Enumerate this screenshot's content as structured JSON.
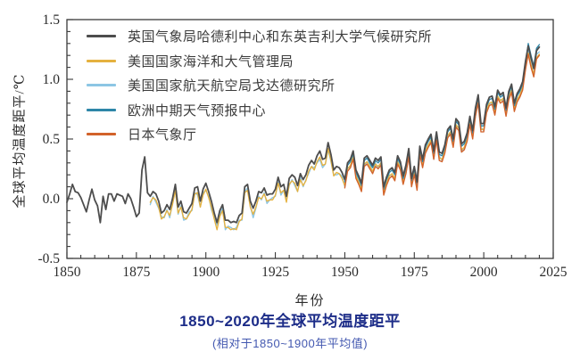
{
  "chart_data": {
    "type": "line",
    "title": "1850~2020年全球平均温度距平",
    "subtitle": "(相对于1850~1900年平均值)",
    "xlabel": "年份",
    "ylabel": "全球平均温度距平/℃",
    "x_range": [
      1850,
      2025
    ],
    "y_range": [
      -0.5,
      1.5
    ],
    "xticks": [
      1850,
      1875,
      1900,
      1925,
      1950,
      1975,
      2000,
      2025
    ],
    "yticks": [
      1.5,
      1.0,
      0.5,
      0.0,
      -0.5
    ],
    "x_minor_step": 5,
    "y_minor_step": 0.1,
    "grid": false,
    "legend_position": "top-left",
    "axis_color": "#3a3a3a",
    "title_color": "#1c2c88",
    "subtitle_color": "#4358b0",
    "series": [
      {
        "name": "英国气象局哈德利中心和东英吉利大学气候研究所",
        "color": "#4d4d4d",
        "start_year": 1850,
        "values": [
          -0.03,
          0.04,
          0.12,
          0.06,
          0.05,
          0.01,
          -0.05,
          -0.11,
          -0.01,
          0.08,
          -0.01,
          -0.06,
          -0.2,
          0.02,
          -0.09,
          0.04,
          0.04,
          -0.02,
          0.04,
          0.03,
          0.02,
          -0.04,
          0.04,
          0.0,
          -0.07,
          -0.15,
          -0.12,
          0.24,
          0.35,
          0.05,
          0.02,
          0.06,
          0.04,
          -0.02,
          -0.12,
          -0.1,
          -0.05,
          -0.09,
          0.0,
          0.12,
          -0.07,
          -0.02,
          -0.11,
          -0.12,
          -0.08,
          -0.04,
          0.09,
          0.1,
          -0.02,
          0.08,
          0.13,
          0.06,
          -0.02,
          -0.12,
          -0.2,
          -0.1,
          -0.05,
          -0.18,
          -0.18,
          -0.2,
          -0.19,
          -0.2,
          -0.14,
          -0.12,
          0.1,
          0.12,
          -0.02,
          -0.08,
          -0.02,
          0.06,
          0.05,
          0.09,
          0.03,
          0.04,
          0.04,
          0.08,
          0.18,
          0.1,
          0.12,
          0.02,
          0.17,
          0.2,
          0.18,
          0.11,
          0.21,
          0.16,
          0.2,
          0.28,
          0.32,
          0.29,
          0.36,
          0.4,
          0.33,
          0.34,
          0.47,
          0.37,
          0.24,
          0.27,
          0.26,
          0.22,
          0.16,
          0.3,
          0.33,
          0.4,
          0.24,
          0.19,
          0.13,
          0.34,
          0.36,
          0.32,
          0.28,
          0.34,
          0.32,
          0.35,
          0.1,
          0.18,
          0.24,
          0.26,
          0.22,
          0.36,
          0.31,
          0.19,
          0.28,
          0.42,
          0.17,
          0.27,
          0.14,
          0.44,
          0.33,
          0.45,
          0.5,
          0.54,
          0.4,
          0.56,
          0.39,
          0.38,
          0.45,
          0.58,
          0.61,
          0.5,
          0.67,
          0.64,
          0.46,
          0.48,
          0.55,
          0.69,
          0.57,
          0.76,
          0.87,
          0.63,
          0.63,
          0.79,
          0.85,
          0.86,
          0.77,
          0.91,
          0.87,
          0.89,
          0.76,
          0.9,
          0.96,
          0.8,
          0.88,
          0.92,
          0.98,
          1.15,
          1.28,
          1.18,
          1.09,
          1.24,
          1.27
        ]
      },
      {
        "name": "美国国家海洋和大气管理局",
        "color": "#e5b13f",
        "start_year": 1880,
        "values": [
          -0.03,
          0.01,
          -0.01,
          -0.07,
          -0.17,
          -0.15,
          -0.1,
          -0.14,
          -0.05,
          0.07,
          -0.12,
          -0.07,
          -0.16,
          -0.17,
          -0.13,
          -0.09,
          0.04,
          0.05,
          -0.07,
          0.03,
          0.08,
          0.01,
          -0.07,
          -0.17,
          -0.26,
          -0.15,
          -0.1,
          -0.24,
          -0.24,
          -0.26,
          -0.25,
          -0.26,
          -0.19,
          -0.17,
          0.05,
          0.07,
          -0.07,
          -0.13,
          -0.07,
          0.01,
          0.0,
          0.04,
          -0.02,
          -0.01,
          -0.01,
          0.03,
          0.13,
          0.05,
          0.07,
          -0.03,
          0.12,
          0.15,
          0.13,
          0.06,
          0.16,
          0.11,
          0.15,
          0.23,
          0.27,
          0.24,
          0.31,
          0.35,
          0.28,
          0.29,
          0.42,
          0.32,
          0.19,
          0.22,
          0.21,
          0.17,
          0.11,
          0.25,
          0.28,
          0.35,
          0.19,
          0.14,
          0.08,
          0.29,
          0.31,
          0.27,
          0.23,
          0.29,
          0.27,
          0.3,
          0.05,
          0.13,
          0.19,
          0.21,
          0.17,
          0.31,
          0.26,
          0.14,
          0.23,
          0.37,
          0.12,
          0.22,
          0.09,
          0.39,
          0.28,
          0.4,
          0.45,
          0.49,
          0.35,
          0.51,
          0.34,
          0.33,
          0.4,
          0.53,
          0.56,
          0.45,
          0.62,
          0.59,
          0.41,
          0.43,
          0.5,
          0.64,
          0.52,
          0.71,
          0.82,
          0.58,
          0.58,
          0.74,
          0.8,
          0.81,
          0.72,
          0.86,
          0.82,
          0.84,
          0.71,
          0.85,
          0.91,
          0.75,
          0.83,
          0.87,
          0.93,
          1.1,
          1.22,
          1.12,
          1.04,
          1.18,
          1.21
        ]
      },
      {
        "name": "美国国家航天航空局戈达德研究所",
        "color": "#8cc6e4",
        "start_year": 1880,
        "values": [
          -0.05,
          0.02,
          -0.03,
          -0.08,
          -0.15,
          -0.16,
          -0.09,
          -0.16,
          -0.04,
          0.08,
          -0.13,
          -0.06,
          -0.18,
          -0.17,
          -0.11,
          -0.1,
          0.05,
          0.03,
          -0.07,
          0.05,
          0.07,
          0.02,
          -0.09,
          -0.16,
          -0.22,
          -0.13,
          -0.08,
          -0.26,
          -0.23,
          -0.24,
          -0.26,
          -0.24,
          -0.18,
          -0.18,
          0.06,
          0.09,
          -0.06,
          -0.16,
          -0.08,
          0.02,
          -0.01,
          0.05,
          -0.04,
          -0.01,
          0.01,
          0.02,
          0.14,
          0.03,
          0.07,
          -0.01,
          0.11,
          0.16,
          0.11,
          0.06,
          0.18,
          0.1,
          0.16,
          0.21,
          0.27,
          0.26,
          0.3,
          0.33,
          0.26,
          0.29,
          0.41,
          0.31,
          0.2,
          0.2,
          0.21,
          0.19,
          0.1,
          0.26,
          0.26,
          0.35,
          0.21,
          0.13,
          0.09,
          0.27,
          0.31,
          0.29,
          0.22,
          0.3,
          0.25,
          0.3,
          0.07,
          0.12,
          0.2,
          0.19,
          0.17,
          0.33,
          0.25,
          0.15,
          0.21,
          0.37,
          0.14,
          0.21,
          0.1,
          0.37,
          0.28,
          0.42,
          0.44,
          0.5,
          0.33,
          0.51,
          0.36,
          0.32,
          0.41,
          0.51,
          0.56,
          0.47,
          0.61,
          0.6,
          0.39,
          0.43,
          0.52,
          0.63,
          0.53,
          0.69,
          0.82,
          0.6,
          0.57,
          0.75,
          0.78,
          0.81,
          0.74,
          0.85,
          0.83,
          0.82,
          0.71,
          0.87,
          0.9,
          0.76,
          0.81,
          0.87,
          0.95,
          1.09,
          1.24,
          1.13,
          1.04,
          1.21,
          1.23
        ]
      },
      {
        "name": "欧洲中期天气预报中心",
        "color": "#2e86a8",
        "start_year": 1950,
        "values": [
          0.14,
          0.28,
          0.31,
          0.38,
          0.22,
          0.17,
          0.11,
          0.32,
          0.34,
          0.3,
          0.26,
          0.32,
          0.3,
          0.33,
          0.08,
          0.16,
          0.22,
          0.24,
          0.2,
          0.34,
          0.29,
          0.17,
          0.26,
          0.4,
          0.15,
          0.25,
          0.12,
          0.42,
          0.31,
          0.43,
          0.48,
          0.52,
          0.38,
          0.54,
          0.37,
          0.36,
          0.43,
          0.56,
          0.59,
          0.48,
          0.65,
          0.62,
          0.44,
          0.46,
          0.53,
          0.67,
          0.55,
          0.74,
          0.85,
          0.61,
          0.61,
          0.77,
          0.83,
          0.84,
          0.75,
          0.89,
          0.85,
          0.87,
          0.74,
          0.88,
          0.94,
          0.78,
          0.86,
          0.9,
          0.96,
          1.13,
          1.3,
          1.2,
          1.11,
          1.26,
          1.29
        ]
      },
      {
        "name": "日本气象厅",
        "color": "#d2622a",
        "start_year": 1950,
        "values": [
          0.09,
          0.23,
          0.26,
          0.33,
          0.17,
          0.12,
          0.06,
          0.27,
          0.29,
          0.25,
          0.21,
          0.27,
          0.25,
          0.28,
          0.03,
          0.11,
          0.17,
          0.19,
          0.15,
          0.29,
          0.24,
          0.12,
          0.21,
          0.35,
          0.1,
          0.2,
          0.07,
          0.37,
          0.26,
          0.38,
          0.43,
          0.47,
          0.33,
          0.49,
          0.32,
          0.31,
          0.38,
          0.51,
          0.54,
          0.43,
          0.6,
          0.57,
          0.39,
          0.41,
          0.48,
          0.62,
          0.5,
          0.69,
          0.8,
          0.56,
          0.56,
          0.72,
          0.78,
          0.79,
          0.7,
          0.84,
          0.8,
          0.82,
          0.69,
          0.83,
          0.89,
          0.73,
          0.81,
          0.85,
          0.91,
          1.08,
          1.21,
          1.1,
          1.02,
          1.17,
          1.2
        ]
      }
    ]
  }
}
